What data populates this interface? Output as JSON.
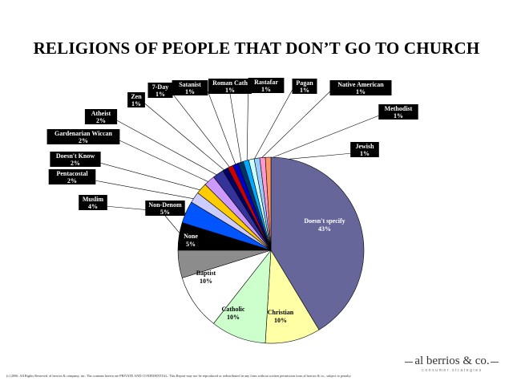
{
  "title": "RELIGIONS OF PEOPLE THAT DON’T GO TO CHURCH",
  "brand": {
    "name": "al berrios & co.",
    "tagline": "consumer strategies"
  },
  "footer": "(c) 2006. All Rights Reserved. al berrios & company, inc. The contents herein are PRIVATE AND CONFIDENTIAL. This Report may not be reproduced or redistributed in any form without written permission from al berrios & co., subject to penalty.",
  "chart_data": {
    "type": "pie",
    "title": "RELIGIONS OF PEOPLE THAT DON’T GO TO CHURCH",
    "slices": [
      {
        "label": "Doesn't specify",
        "value": 43,
        "display": "43%",
        "color": "#66669a",
        "label_style": "inside",
        "text_color": "#ffffff"
      },
      {
        "label": "Christian",
        "value": 10,
        "display": "10%",
        "color": "#ffffa6",
        "label_style": "inside",
        "text_color": "#000000"
      },
      {
        "label": "Catholic",
        "value": 10,
        "display": "10%",
        "color": "#ccffcc",
        "label_style": "inside",
        "text_color": "#000000"
      },
      {
        "label": "Baptist",
        "value": 10,
        "display": "10%",
        "color": "#ffffff",
        "label_style": "inside",
        "text_color": "#000000"
      },
      {
        "label": "None",
        "value": 5,
        "display": "5%",
        "color": "#8c8c8c",
        "label_style": "inside",
        "text_color": "#ffffff"
      },
      {
        "label": "Non-Denom",
        "value": 5,
        "display": "5%",
        "color": "#000000",
        "label_style": "callout"
      },
      {
        "label": "Muslim",
        "value": 4,
        "display": "4%",
        "color": "#0055ff",
        "label_style": "callout"
      },
      {
        "label": "Pentacostal",
        "value": 2,
        "display": "2%",
        "color": "#ccccff",
        "label_style": "callout"
      },
      {
        "label": "Doesn't Know",
        "value": 2,
        "display": "2%",
        "color": "#ffcc00",
        "label_style": "callout"
      },
      {
        "label": "Gardenarian Wiccan",
        "value": 2,
        "display": "2%",
        "color": "#cc99ff",
        "label_style": "callout"
      },
      {
        "label": "Atheist",
        "value": 2,
        "display": "2%",
        "color": "#333399",
        "label_style": "callout"
      },
      {
        "label": "Zen",
        "value": 1,
        "display": "1%",
        "color": "#000066",
        "label_style": "callout"
      },
      {
        "label": "7-Day",
        "value": 1,
        "display": "1%",
        "color": "#cc0000",
        "label_style": "callout"
      },
      {
        "label": "Satanist",
        "value": 1,
        "display": "1%",
        "color": "#0000cc",
        "label_style": "callout"
      },
      {
        "label": "Roman Cath",
        "value": 1,
        "display": "1%",
        "color": "#003366",
        "label_style": "callout"
      },
      {
        "label": "Rastafar",
        "value": 1,
        "display": "1%",
        "color": "#00aaff",
        "label_style": "callout"
      },
      {
        "label": "Pagan",
        "value": 1,
        "display": "1%",
        "color": "#ccffff",
        "label_style": "callout"
      },
      {
        "label": "Native American",
        "value": 1,
        "display": "1%",
        "color": "#99ccff",
        "label_style": "callout"
      },
      {
        "label": "Methodist",
        "value": 1,
        "display": "1%",
        "color": "#ff99cc",
        "label_style": "callout"
      },
      {
        "label": "Jewish",
        "value": 1,
        "display": "1%",
        "color": "#ff9966",
        "label_style": "callout"
      }
    ],
    "start": "12 o'clock",
    "direction": "clockwise",
    "legend": "none",
    "xlabel": "",
    "ylabel": ""
  }
}
